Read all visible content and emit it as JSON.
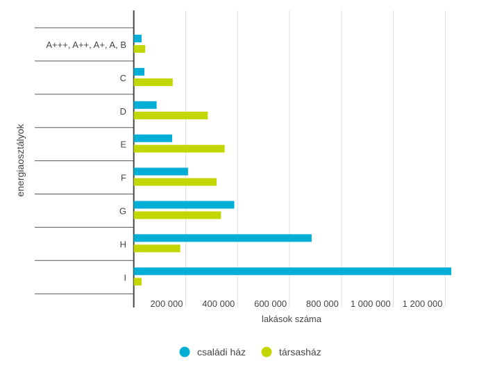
{
  "chart_data": {
    "type": "bar",
    "orientation": "horizontal",
    "categories": [
      "A+++, A++, A+, A, B",
      "C",
      "D",
      "E",
      "F",
      "G",
      "H",
      "I"
    ],
    "series": [
      {
        "name": "családi ház",
        "color": "#00aed6",
        "values": [
          30000,
          41000,
          88000,
          148000,
          209000,
          387000,
          685000,
          1223000
        ]
      },
      {
        "name": "társasház",
        "color": "#c4d600",
        "values": [
          44000,
          150000,
          285000,
          350000,
          319000,
          336000,
          179000,
          30000
        ]
      }
    ],
    "xlabel": "lakások száma",
    "ylabel": "energiaosztályok",
    "xlim": [
      0,
      1230000
    ],
    "xticks": [
      200000,
      400000,
      600000,
      800000,
      1000000,
      1200000
    ],
    "xtick_labels": [
      "200 000",
      "400 000",
      "600 000",
      "800 000",
      "1 000 000",
      "1 200 000"
    ],
    "grid": true,
    "legend": "bottom"
  }
}
